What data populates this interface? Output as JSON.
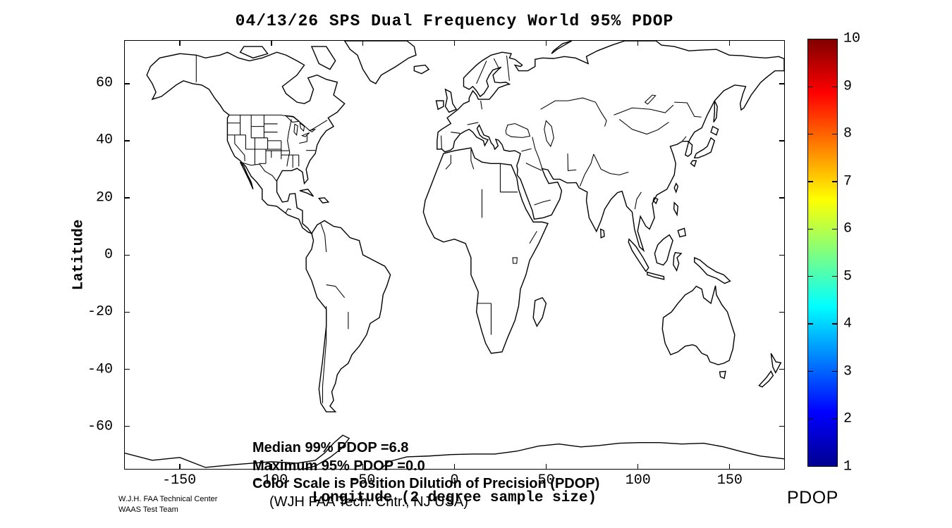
{
  "title": "04/13/26 SPS Dual Frequency World 95% PDOP",
  "axes": {
    "x_label": "Longitude (2 degree sample size)",
    "y_label": "Latitude",
    "x_range": [
      -180,
      180
    ],
    "y_range": [
      -75,
      75
    ],
    "x_ticks": [
      -150,
      -100,
      -50,
      0,
      50,
      100,
      150
    ],
    "y_ticks": [
      60,
      40,
      20,
      0,
      -20,
      -40,
      -60
    ]
  },
  "annotations": [
    "Median 99% PDOP =6.8",
    "Maximum 95% PDOP =0.0",
    "Color Scale is Position Dilution of Precision (PDOP)",
    "(WJH FAA Tech. Cntr., NJ USA)"
  ],
  "colorbar": {
    "label": "PDOP",
    "min": 1,
    "max": 10,
    "ticks": [
      1,
      2,
      3,
      4,
      5,
      6,
      7,
      8,
      9,
      10
    ],
    "colormap": "jet"
  },
  "footer": [
    "W.J.H. FAA Technical Center",
    "WAAS Test Team"
  ],
  "chart_data": {
    "type": "heatmap",
    "title": "04/13/26 SPS Dual Frequency World 95% PDOP",
    "xlabel": "Longitude (2 degree sample size)",
    "ylabel": "Latitude",
    "xlim": [
      -180,
      180
    ],
    "ylim": [
      -75,
      75
    ],
    "x_ticks": [
      -150,
      -100,
      -50,
      0,
      50,
      100,
      150
    ],
    "y_ticks": [
      60,
      40,
      20,
      0,
      -20,
      -40,
      -60
    ],
    "sample_size_deg": 2,
    "basemap": "world coastlines with country and US state borders, no colored data cells visible",
    "colorbar": {
      "label": "PDOP",
      "range": [
        1,
        10
      ],
      "ticks": [
        1,
        2,
        3,
        4,
        5,
        6,
        7,
        8,
        9,
        10
      ],
      "colormap": "jet",
      "position": "right"
    },
    "stats": {
      "median_99_pdop": 6.8,
      "maximum_95_pdop": 0.0
    }
  }
}
